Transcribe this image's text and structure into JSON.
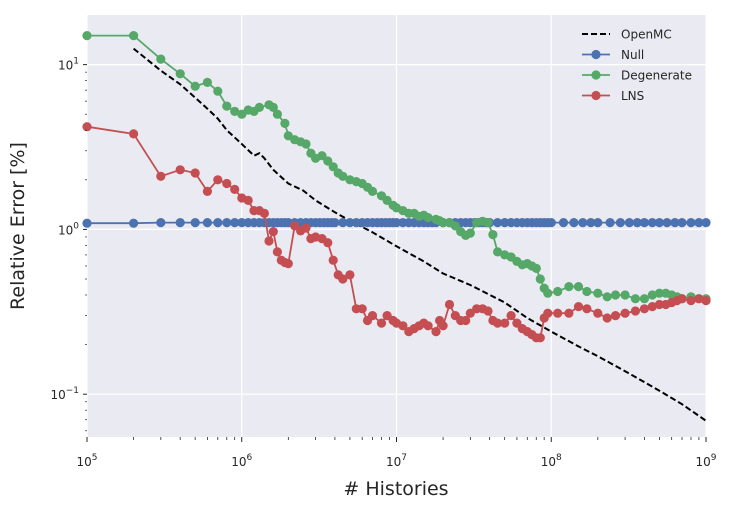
{
  "chart_data": {
    "type": "line",
    "title": "",
    "xlabel": "# Histories",
    "ylabel": "Relative Error [%]",
    "xscale": "log",
    "yscale": "log",
    "xlim": [
      100000,
      1000000000
    ],
    "ylim": [
      0.055,
      20
    ],
    "grid": true,
    "legend_position": "top-right",
    "x_ticks": [
      {
        "value": 100000,
        "base": "10",
        "exp": "5"
      },
      {
        "value": 1000000,
        "base": "10",
        "exp": "6"
      },
      {
        "value": 10000000,
        "base": "10",
        "exp": "7"
      },
      {
        "value": 100000000,
        "base": "10",
        "exp": "8"
      },
      {
        "value": 1000000000,
        "base": "10",
        "exp": "9"
      }
    ],
    "y_ticks": [
      {
        "value": 0.1,
        "base": "10",
        "exp": "−1"
      },
      {
        "value": 1,
        "base": "10",
        "exp": "0"
      },
      {
        "value": 10,
        "base": "10",
        "exp": "1"
      }
    ],
    "series": [
      {
        "name": "OpenMC",
        "color": "#000000",
        "style": "dashed",
        "markers": false,
        "x": [
          200000,
          300000,
          400000,
          500000,
          600000,
          700000,
          800000,
          1000000,
          1200000,
          1300000,
          1400000,
          1600000,
          2000000,
          2500000,
          3000000,
          4000000,
          5000000,
          7000000,
          10000000,
          15000000,
          20000000,
          30000000,
          50000000,
          70000000,
          100000000,
          150000000,
          200000000,
          300000000,
          500000000,
          700000000,
          1000000000
        ],
        "y": [
          12.5,
          9.2,
          7.6,
          6.3,
          5.4,
          4.7,
          4.0,
          3.3,
          2.8,
          2.9,
          2.7,
          2.3,
          1.9,
          1.72,
          1.5,
          1.27,
          1.13,
          0.96,
          0.79,
          0.64,
          0.54,
          0.46,
          0.36,
          0.29,
          0.24,
          0.195,
          0.17,
          0.138,
          0.105,
          0.087,
          0.069
        ]
      },
      {
        "name": "Null",
        "color": "#4c72b0",
        "style": "solid",
        "markers": true,
        "x": [
          100000,
          200000,
          300000,
          400000,
          500000,
          600000,
          700000,
          800000,
          900000,
          1000000,
          1100000,
          1200000,
          1300000,
          1400000,
          1500000,
          1600000,
          1700000,
          1800000,
          1900000,
          2000000,
          2200000,
          2400000,
          2600000,
          2800000,
          3000000,
          3200000,
          3400000,
          3600000,
          3800000,
          4000000,
          4500000,
          5000000,
          5500000,
          6000000,
          6500000,
          7000000,
          7500000,
          8000000,
          8500000,
          9000000,
          9500000,
          10000000,
          11000000,
          12000000,
          13000000,
          14000000,
          15000000,
          16000000,
          17000000,
          18000000,
          20000000,
          22000000,
          24000000,
          26000000,
          28000000,
          30000000,
          32000000,
          34000000,
          36000000,
          38000000,
          40000000,
          45000000,
          50000000,
          55000000,
          60000000,
          65000000,
          70000000,
          75000000,
          80000000,
          85000000,
          90000000,
          95000000,
          100000000,
          120000000,
          140000000,
          160000000,
          180000000,
          200000000,
          240000000,
          280000000,
          320000000,
          360000000,
          400000000,
          450000000,
          500000000,
          560000000,
          630000000,
          700000000,
          800000000,
          900000000,
          1000000000
        ],
        "y": [
          1.09,
          1.09,
          1.1,
          1.1,
          1.1,
          1.1,
          1.1,
          1.1,
          1.1,
          1.1,
          1.1,
          1.1,
          1.1,
          1.1,
          1.1,
          1.1,
          1.1,
          1.1,
          1.1,
          1.1,
          1.1,
          1.1,
          1.1,
          1.1,
          1.1,
          1.1,
          1.1,
          1.1,
          1.1,
          1.1,
          1.1,
          1.1,
          1.1,
          1.1,
          1.1,
          1.1,
          1.1,
          1.1,
          1.1,
          1.1,
          1.1,
          1.1,
          1.1,
          1.1,
          1.1,
          1.1,
          1.1,
          1.1,
          1.1,
          1.1,
          1.1,
          1.1,
          1.1,
          1.1,
          1.1,
          1.1,
          1.1,
          1.1,
          1.1,
          1.1,
          1.1,
          1.1,
          1.1,
          1.1,
          1.1,
          1.1,
          1.1,
          1.1,
          1.1,
          1.1,
          1.1,
          1.1,
          1.1,
          1.1,
          1.1,
          1.1,
          1.1,
          1.1,
          1.1,
          1.1,
          1.1,
          1.1,
          1.1,
          1.1,
          1.1,
          1.1,
          1.1,
          1.1,
          1.1,
          1.1,
          1.1
        ]
      },
      {
        "name": "Degenerate",
        "color": "#55a868",
        "style": "solid",
        "markers": true,
        "x": [
          100000,
          200000,
          300000,
          400000,
          500000,
          600000,
          700000,
          800000,
          900000,
          1000000,
          1100000,
          1200000,
          1300000,
          1500000,
          1600000,
          1700000,
          1900000,
          2000000,
          2200000,
          2400000,
          2600000,
          2800000,
          3000000,
          3300000,
          3600000,
          3900000,
          4200000,
          4500000,
          5000000,
          5500000,
          6000000,
          6500000,
          7000000,
          8000000,
          8700000,
          9500000,
          10000000,
          11000000,
          12000000,
          13000000,
          14000000,
          15000000,
          16000000,
          18000000,
          19000000,
          20000000,
          22000000,
          24000000,
          26000000,
          28000000,
          30000000,
          33000000,
          36000000,
          39000000,
          42000000,
          45000000,
          50000000,
          55000000,
          60000000,
          65000000,
          70000000,
          75000000,
          80000000,
          85000000,
          90000000,
          95000000,
          110000000,
          130000000,
          150000000,
          170000000,
          200000000,
          230000000,
          260000000,
          300000000,
          350000000,
          400000000,
          450000000,
          500000000,
          550000000,
          600000000,
          650000000,
          700000000,
          800000000,
          900000000,
          1000000000
        ],
        "y": [
          15,
          15,
          10.8,
          8.8,
          7.4,
          7.8,
          6.9,
          5.6,
          5.2,
          5.0,
          5.3,
          5.2,
          5.5,
          5.7,
          5.5,
          5.0,
          4.4,
          3.7,
          3.5,
          3.4,
          3.3,
          2.9,
          2.7,
          2.8,
          2.6,
          2.4,
          2.2,
          2.1,
          2.0,
          1.95,
          1.9,
          1.8,
          1.7,
          1.6,
          1.5,
          1.4,
          1.35,
          1.3,
          1.25,
          1.25,
          1.2,
          1.22,
          1.18,
          1.15,
          1.13,
          1.1,
          1.1,
          1.05,
          0.97,
          0.92,
          0.95,
          1.1,
          1.12,
          1.1,
          0.93,
          0.73,
          0.7,
          0.68,
          0.64,
          0.61,
          0.62,
          0.6,
          0.58,
          0.5,
          0.44,
          0.41,
          0.42,
          0.45,
          0.45,
          0.42,
          0.41,
          0.39,
          0.4,
          0.4,
          0.38,
          0.38,
          0.4,
          0.41,
          0.41,
          0.4,
          0.39,
          0.38,
          0.39,
          0.38,
          0.38
        ]
      },
      {
        "name": "LNS",
        "color": "#c44e52",
        "style": "solid",
        "markers": true,
        "x": [
          100000,
          200000,
          300000,
          400000,
          500000,
          600000,
          700000,
          800000,
          900000,
          1000000,
          1100000,
          1200000,
          1300000,
          1400000,
          1500000,
          1600000,
          1700000,
          1800000,
          1900000,
          2000000,
          2200000,
          2400000,
          2600000,
          2800000,
          3000000,
          3300000,
          3600000,
          3900000,
          4200000,
          4500000,
          5000000,
          5500000,
          6000000,
          6500000,
          7000000,
          8000000,
          8700000,
          9500000,
          10000000,
          11000000,
          12000000,
          13000000,
          14000000,
          15000000,
          16000000,
          18000000,
          19000000,
          20000000,
          22000000,
          24000000,
          26000000,
          28000000,
          30000000,
          33000000,
          36000000,
          39000000,
          42000000,
          45000000,
          50000000,
          55000000,
          60000000,
          65000000,
          70000000,
          75000000,
          80000000,
          85000000,
          90000000,
          95000000,
          110000000,
          130000000,
          150000000,
          170000000,
          200000000,
          230000000,
          260000000,
          300000000,
          350000000,
          400000000,
          450000000,
          500000000,
          550000000,
          600000000,
          650000000,
          700000000,
          800000000,
          900000000,
          1000000000
        ],
        "y": [
          4.2,
          3.8,
          2.1,
          2.3,
          2.2,
          1.7,
          2.0,
          1.9,
          1.75,
          1.55,
          1.5,
          1.3,
          1.3,
          1.25,
          0.85,
          0.97,
          0.73,
          0.65,
          0.63,
          0.62,
          1.05,
          0.98,
          1.02,
          0.88,
          0.9,
          0.88,
          0.83,
          0.65,
          0.53,
          0.5,
          0.53,
          0.33,
          0.33,
          0.28,
          0.3,
          0.27,
          0.3,
          0.28,
          0.27,
          0.26,
          0.24,
          0.25,
          0.26,
          0.27,
          0.26,
          0.24,
          0.28,
          0.26,
          0.35,
          0.3,
          0.28,
          0.28,
          0.31,
          0.33,
          0.33,
          0.32,
          0.28,
          0.27,
          0.27,
          0.3,
          0.27,
          0.25,
          0.24,
          0.23,
          0.22,
          0.22,
          0.29,
          0.31,
          0.31,
          0.31,
          0.34,
          0.33,
          0.31,
          0.29,
          0.3,
          0.31,
          0.32,
          0.33,
          0.34,
          0.35,
          0.35,
          0.36,
          0.37,
          0.38,
          0.37,
          0.38,
          0.37
        ]
      }
    ]
  }
}
